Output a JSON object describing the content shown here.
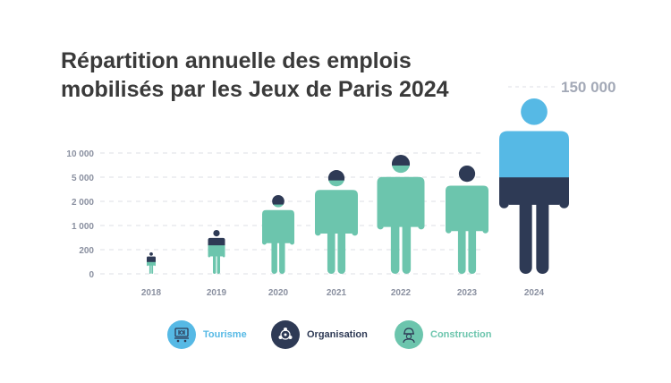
{
  "chart_data": {
    "type": "pictogram-bar",
    "title": [
      "Répartition annuelle des emplois",
      "mobilisés par les Jeux de Paris 2024"
    ],
    "y_ticks": [
      "10 000",
      "5 000",
      "2 000",
      "1 000",
      "200",
      "0"
    ],
    "top_value_label": "150 000",
    "categories": [
      "2018",
      "2019",
      "2020",
      "2021",
      "2022",
      "2023",
      "2024"
    ],
    "series": [
      {
        "name": "Tourisme",
        "color": "#56b9e5"
      },
      {
        "name": "Organisation",
        "color": "#2e3a55"
      },
      {
        "name": "Construction",
        "color": "#6cc5ad"
      }
    ],
    "shares": [
      {
        "Tourisme": 0,
        "Organisation": 0.45,
        "Construction": 0.55
      },
      {
        "Tourisme": 0,
        "Organisation": 0.35,
        "Construction": 0.65
      },
      {
        "Tourisme": 0,
        "Organisation": 0.12,
        "Construction": 0.88
      },
      {
        "Tourisme": 0,
        "Organisation": 0.1,
        "Construction": 0.9
      },
      {
        "Tourisme": 0,
        "Organisation": 0.09,
        "Construction": 0.91
      },
      {
        "Tourisme": 0,
        "Organisation": 0.16,
        "Construction": 0.84
      },
      {
        "Tourisme": 0.45,
        "Organisation": 0.55,
        "Construction": 0
      }
    ],
    "scale": "non-linear (0, 200, 1 000, 2 000, 5 000, 10 000, 150 000)",
    "grid": true,
    "legend_position": "bottom"
  },
  "legend": [
    {
      "label": "Tourisme",
      "icon": "dining-icon",
      "color": "#56b9e5",
      "text_color": "#56b9e5"
    },
    {
      "label": "Organisation",
      "icon": "network-icon",
      "color": "#2e3a55",
      "text_color": "#2e3a55"
    },
    {
      "label": "Construction",
      "icon": "worker-icon",
      "color": "#6cc5ad",
      "text_color": "#6cc5ad"
    }
  ]
}
